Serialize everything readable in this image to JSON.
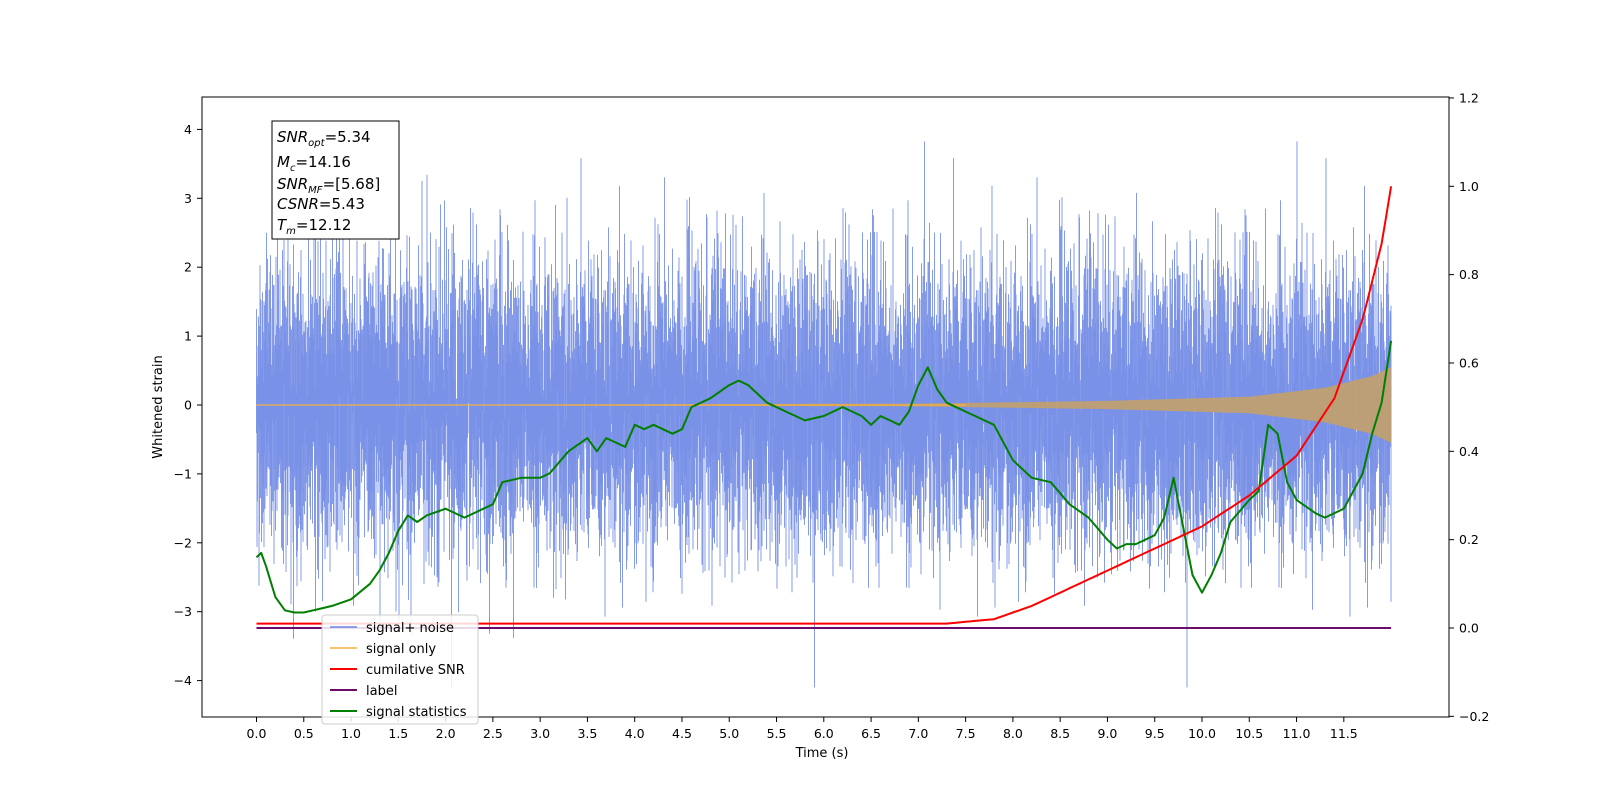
{
  "chart_data": {
    "type": "line",
    "xlabel": "Time (s)",
    "ylabel": "Whitened strain",
    "xlim": [
      -0.6,
      12.5
    ],
    "ylim": [
      -4.5,
      4.5
    ],
    "y2lim": [
      -0.2,
      1.2
    ],
    "x_ticks": [
      "0.0",
      "0.5",
      "1.0",
      "1.5",
      "2.0",
      "2.5",
      "3.0",
      "3.5",
      "4.0",
      "4.5",
      "5.0",
      "5.5",
      "6.0",
      "6.5",
      "7.0",
      "7.5",
      "8.0",
      "8.5",
      "9.0",
      "9.5",
      "10.0",
      "10.5",
      "11.0",
      "11.5"
    ],
    "y_ticks": [
      "4",
      "3",
      "2",
      "1",
      "0",
      "−1",
      "−2",
      "−3",
      "−4"
    ],
    "y2_ticks": [
      "1.2",
      "1.0",
      "0.8",
      "0.6",
      "0.4",
      "0.2",
      "0.0",
      "−0.2"
    ],
    "legend_location": "lower left",
    "colors": {
      "signal_noise": "#6a85e3",
      "signal_only": "#f5b041",
      "cumulative_snr": "#ff0000",
      "label": "#6a0d6a",
      "statistics": "#007f00",
      "chirp_fill": "#c0a070"
    },
    "annotation": {
      "snr_opt": "5.34",
      "mc": "14.16",
      "snr_mf": "[5.68]",
      "csnr": "5.43",
      "tm": "12.12"
    },
    "series": [
      {
        "name": "signal+ noise",
        "description": "whitened strain, approx. unit-variance noise, extremes about -4.1 to 4.1, t = 0 to 12",
        "range": [
          -4.1,
          4.1
        ]
      },
      {
        "name": "signal only",
        "description": "chirp with amplitude growing to about 0.55 at t=12",
        "x": [
          0,
          7.0,
          9.0,
          10.5,
          11.3,
          11.8,
          12.0
        ],
        "envelope": [
          0.0,
          0.02,
          0.06,
          0.12,
          0.25,
          0.42,
          0.55
        ]
      },
      {
        "name": "cumilative SNR",
        "axis": "right",
        "x": [
          0,
          7.3,
          7.8,
          8.2,
          8.8,
          9.4,
          10.0,
          10.5,
          11.0,
          11.4,
          11.7,
          11.9,
          12.0
        ],
        "values": [
          0.01,
          0.01,
          0.02,
          0.05,
          0.11,
          0.17,
          0.23,
          0.3,
          0.39,
          0.52,
          0.7,
          0.87,
          1.0
        ]
      },
      {
        "name": "label",
        "axis": "right",
        "x": [
          0,
          12.0
        ],
        "values": [
          0.0,
          0.0
        ]
      },
      {
        "name": "signal statistics",
        "axis": "right",
        "x": [
          0,
          0.05,
          0.1,
          0.2,
          0.3,
          0.4,
          0.5,
          0.6,
          0.7,
          0.8,
          1.0,
          1.2,
          1.3,
          1.4,
          1.5,
          1.6,
          1.7,
          1.8,
          2.0,
          2.2,
          2.4,
          2.5,
          2.6,
          2.8,
          3.0,
          3.1,
          3.3,
          3.5,
          3.6,
          3.7,
          3.9,
          4.0,
          4.1,
          4.2,
          4.4,
          4.5,
          4.6,
          4.8,
          5.0,
          5.1,
          5.2,
          5.3,
          5.4,
          5.6,
          5.8,
          6.0,
          6.2,
          6.4,
          6.5,
          6.6,
          6.8,
          6.9,
          7.0,
          7.1,
          7.2,
          7.3,
          7.5,
          7.6,
          7.8,
          8.0,
          8.2,
          8.4,
          8.6,
          8.8,
          9.0,
          9.1,
          9.2,
          9.3,
          9.4,
          9.5,
          9.6,
          9.7,
          9.9,
          10.0,
          10.1,
          10.2,
          10.3,
          10.5,
          10.6,
          10.7,
          10.8,
          10.9,
          11.0,
          11.2,
          11.3,
          11.5,
          11.6,
          11.7,
          11.8,
          11.9,
          12.0
        ],
        "values": [
          0.16,
          0.17,
          0.14,
          0.07,
          0.04,
          0.035,
          0.035,
          0.04,
          0.045,
          0.05,
          0.065,
          0.1,
          0.13,
          0.17,
          0.22,
          0.255,
          0.24,
          0.255,
          0.27,
          0.25,
          0.27,
          0.28,
          0.33,
          0.34,
          0.34,
          0.35,
          0.4,
          0.43,
          0.4,
          0.43,
          0.41,
          0.46,
          0.45,
          0.46,
          0.44,
          0.45,
          0.5,
          0.52,
          0.55,
          0.56,
          0.55,
          0.53,
          0.51,
          0.49,
          0.47,
          0.48,
          0.5,
          0.48,
          0.46,
          0.48,
          0.46,
          0.49,
          0.55,
          0.59,
          0.54,
          0.51,
          0.49,
          0.48,
          0.46,
          0.38,
          0.34,
          0.33,
          0.28,
          0.25,
          0.2,
          0.18,
          0.19,
          0.19,
          0.2,
          0.21,
          0.25,
          0.34,
          0.12,
          0.08,
          0.12,
          0.17,
          0.24,
          0.29,
          0.31,
          0.46,
          0.44,
          0.33,
          0.29,
          0.26,
          0.25,
          0.27,
          0.31,
          0.35,
          0.44,
          0.51,
          0.65
        ]
      }
    ]
  }
}
